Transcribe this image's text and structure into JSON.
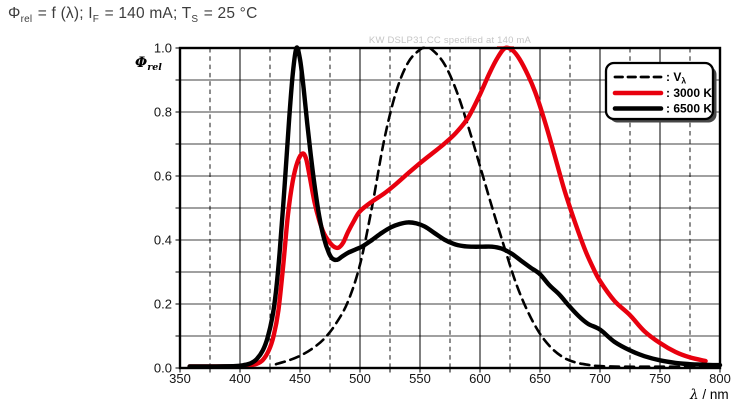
{
  "page": {
    "title_plain": "Φrel = f (λ); IF = 140 mA; TS = 25 °C",
    "title_segments": [
      {
        "text": "Φ",
        "sub": "rel"
      },
      {
        "text": " = f (λ); I",
        "sub": "F"
      },
      {
        "text": " = 140 mA; T",
        "sub": "S"
      },
      {
        "text": " = 25 °C",
        "sub": ""
      }
    ]
  },
  "watermark": {
    "pre": "KW DSLP31.CC specified at ",
    "highlight": "140",
    "post": " mA",
    "full": "KW DSLP31.CC specified at 140 mA"
  },
  "colors": {
    "red": "#e8000e",
    "black": "#000000",
    "grid": "#000000",
    "frame": "#000000",
    "title_text": "#3d3d3d",
    "watermark_text": "#c6c6c6",
    "tick_label": "#141414",
    "legend_shadow": "#474747",
    "legend_bg": "#ffffff"
  },
  "chart_data": {
    "type": "line",
    "title": "Φrel = f (λ); IF = 140 mA; TS = 25 °C",
    "annotation": "KW DSLP31.CC specified at 140 mA",
    "xlabel": "λ / nm",
    "ylabel": "Φrel",
    "xlim": [
      350,
      800
    ],
    "ylim": [
      0.0,
      1.0
    ],
    "x_major_step": 50,
    "x_minor_step": 25,
    "y_grid_step": 0.1,
    "grid": "on",
    "legend_position": "top-right",
    "x_tick_labels": [
      "350",
      "400",
      "450",
      "500",
      "550",
      "600",
      "650",
      "700",
      "750",
      "800"
    ],
    "y_tick_labels": [
      "0.0",
      "0.2",
      "0.4",
      "0.6",
      "0.8",
      "1.0"
    ],
    "series": [
      {
        "name": "V-lambda",
        "label": {
          "text": ": V",
          "sub": "λ"
        },
        "style": "dashed",
        "color": "#000000",
        "width": 2.6,
        "points": [
          [
            430,
            0.012
          ],
          [
            440,
            0.023
          ],
          [
            450,
            0.038
          ],
          [
            460,
            0.06
          ],
          [
            470,
            0.091
          ],
          [
            480,
            0.139
          ],
          [
            490,
            0.208
          ],
          [
            500,
            0.323
          ],
          [
            510,
            0.503
          ],
          [
            520,
            0.71
          ],
          [
            530,
            0.862
          ],
          [
            540,
            0.954
          ],
          [
            550,
            0.995
          ],
          [
            555,
            1.0
          ],
          [
            560,
            0.995
          ],
          [
            570,
            0.952
          ],
          [
            580,
            0.87
          ],
          [
            590,
            0.757
          ],
          [
            600,
            0.631
          ],
          [
            610,
            0.503
          ],
          [
            620,
            0.381
          ],
          [
            630,
            0.265
          ],
          [
            640,
            0.175
          ],
          [
            650,
            0.107
          ],
          [
            660,
            0.061
          ],
          [
            670,
            0.032
          ],
          [
            680,
            0.017
          ],
          [
            690,
            0.01
          ],
          [
            700,
            0.006
          ],
          [
            720,
            0.004
          ],
          [
            750,
            0.004
          ],
          [
            798,
            0.004
          ]
        ]
      },
      {
        "name": "3000 K",
        "label": {
          "text": ": 3000 K",
          "sub": ""
        },
        "style": "solid",
        "color": "#e8000e",
        "width": 4.4,
        "points": [
          [
            358,
            0.005
          ],
          [
            380,
            0.005
          ],
          [
            400,
            0.005
          ],
          [
            408,
            0.008
          ],
          [
            414,
            0.013
          ],
          [
            419,
            0.025
          ],
          [
            424,
            0.055
          ],
          [
            428,
            0.1
          ],
          [
            432,
            0.18
          ],
          [
            436,
            0.32
          ],
          [
            440,
            0.48
          ],
          [
            444,
            0.585
          ],
          [
            448,
            0.645
          ],
          [
            452,
            0.67
          ],
          [
            455,
            0.655
          ],
          [
            458,
            0.6
          ],
          [
            462,
            0.52
          ],
          [
            466,
            0.462
          ],
          [
            470,
            0.42
          ],
          [
            474,
            0.396
          ],
          [
            478,
            0.38
          ],
          [
            482,
            0.376
          ],
          [
            486,
            0.392
          ],
          [
            490,
            0.425
          ],
          [
            495,
            0.46
          ],
          [
            500,
            0.49
          ],
          [
            510,
            0.52
          ],
          [
            520,
            0.545
          ],
          [
            530,
            0.575
          ],
          [
            540,
            0.608
          ],
          [
            550,
            0.64
          ],
          [
            560,
            0.67
          ],
          [
            570,
            0.7
          ],
          [
            580,
            0.735
          ],
          [
            590,
            0.782
          ],
          [
            600,
            0.855
          ],
          [
            608,
            0.922
          ],
          [
            615,
            0.972
          ],
          [
            621,
            1.0
          ],
          [
            627,
            0.993
          ],
          [
            633,
            0.965
          ],
          [
            640,
            0.915
          ],
          [
            646,
            0.862
          ],
          [
            652,
            0.795
          ],
          [
            658,
            0.72
          ],
          [
            664,
            0.64
          ],
          [
            670,
            0.56
          ],
          [
            676,
            0.49
          ],
          [
            682,
            0.425
          ],
          [
            688,
            0.365
          ],
          [
            694,
            0.315
          ],
          [
            700,
            0.272
          ],
          [
            712,
            0.21
          ],
          [
            725,
            0.165
          ],
          [
            737,
            0.115
          ],
          [
            750,
            0.078
          ],
          [
            763,
            0.05
          ],
          [
            775,
            0.033
          ],
          [
            788,
            0.022
          ]
        ]
      },
      {
        "name": "6500 K",
        "label": {
          "text": ": 6500 K",
          "sub": ""
        },
        "style": "solid",
        "color": "#000000",
        "width": 4.4,
        "points": [
          [
            358,
            0.005
          ],
          [
            380,
            0.005
          ],
          [
            396,
            0.006
          ],
          [
            403,
            0.009
          ],
          [
            409,
            0.015
          ],
          [
            414,
            0.028
          ],
          [
            419,
            0.055
          ],
          [
            423,
            0.095
          ],
          [
            427,
            0.16
          ],
          [
            430,
            0.24
          ],
          [
            433,
            0.36
          ],
          [
            437,
            0.56
          ],
          [
            441,
            0.78
          ],
          [
            444,
            0.92
          ],
          [
            447,
            1.0
          ],
          [
            450,
            0.965
          ],
          [
            453,
            0.875
          ],
          [
            456,
            0.765
          ],
          [
            459,
            0.665
          ],
          [
            462,
            0.575
          ],
          [
            466,
            0.475
          ],
          [
            470,
            0.405
          ],
          [
            474,
            0.36
          ],
          [
            477,
            0.342
          ],
          [
            481,
            0.338
          ],
          [
            485,
            0.348
          ],
          [
            490,
            0.36
          ],
          [
            496,
            0.37
          ],
          [
            502,
            0.38
          ],
          [
            510,
            0.4
          ],
          [
            518,
            0.422
          ],
          [
            526,
            0.44
          ],
          [
            533,
            0.45
          ],
          [
            540,
            0.455
          ],
          [
            547,
            0.452
          ],
          [
            554,
            0.442
          ],
          [
            562,
            0.422
          ],
          [
            570,
            0.402
          ],
          [
            578,
            0.388
          ],
          [
            586,
            0.381
          ],
          [
            594,
            0.379
          ],
          [
            602,
            0.379
          ],
          [
            610,
            0.379
          ],
          [
            618,
            0.373
          ],
          [
            626,
            0.358
          ],
          [
            634,
            0.336
          ],
          [
            642,
            0.314
          ],
          [
            650,
            0.293
          ],
          [
            658,
            0.258
          ],
          [
            666,
            0.23
          ],
          [
            674,
            0.195
          ],
          [
            682,
            0.163
          ],
          [
            690,
            0.138
          ],
          [
            700,
            0.12
          ],
          [
            712,
            0.082
          ],
          [
            725,
            0.055
          ],
          [
            737,
            0.037
          ],
          [
            750,
            0.024
          ],
          [
            763,
            0.016
          ],
          [
            775,
            0.012
          ],
          [
            788,
            0.01
          ],
          [
            800,
            0.009
          ]
        ]
      }
    ]
  },
  "axis": {
    "y_label_main": "Φ",
    "y_label_sub": "rel",
    "x_label_italic": "λ",
    "x_label_rest": " / nm"
  }
}
